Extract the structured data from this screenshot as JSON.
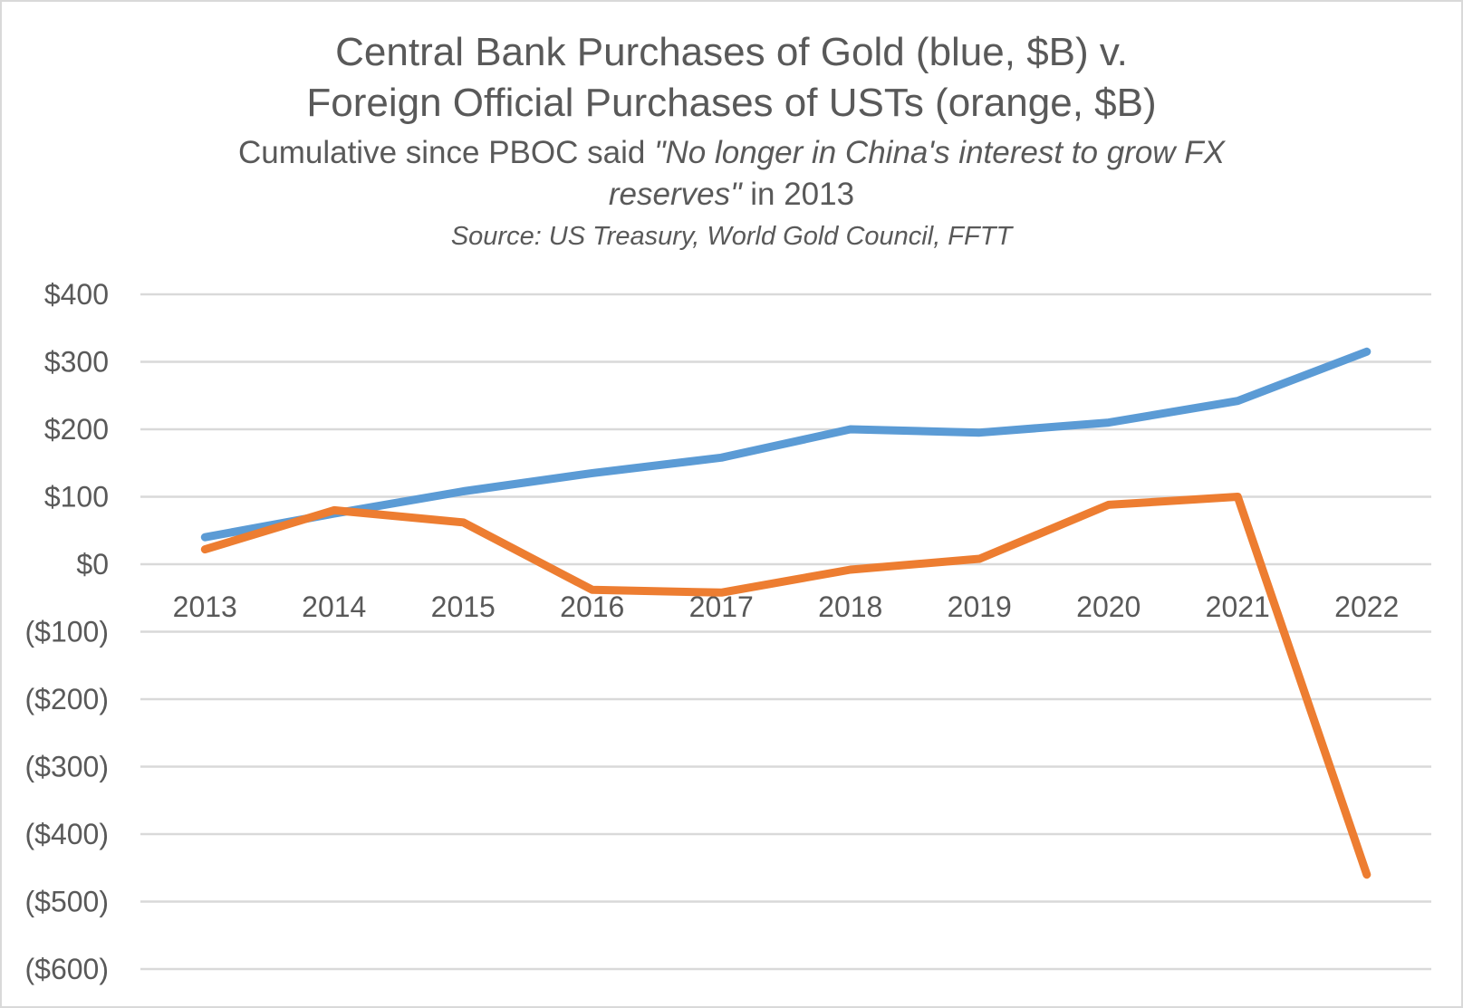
{
  "chart_data": {
    "type": "line",
    "title_line1": "Central Bank Purchases of Gold (blue, $B) v.",
    "title_line2": "Foreign Official Purchases of USTs (orange, $B)",
    "subtitle_part1": "Cumulative since PBOC said ",
    "subtitle_quote_line1": "\"No longer in China's interest to grow FX",
    "subtitle_quote_line2": "reserves\"",
    "subtitle_part2": " in 2013",
    "source": "Source: US Treasury, World Gold Council, FFTT",
    "categories": [
      "2013",
      "2014",
      "2015",
      "2016",
      "2017",
      "2018",
      "2019",
      "2020",
      "2021",
      "2022"
    ],
    "y_ticks": [
      400,
      300,
      200,
      100,
      0,
      -100,
      -200,
      -300,
      -400,
      -500,
      -600
    ],
    "y_tick_labels": [
      "$400",
      "$300",
      "$200",
      "$100",
      "$0",
      "($100)",
      "($200)",
      "($300)",
      "($400)",
      "($500)",
      "($600)"
    ],
    "ylim": [
      -600,
      400
    ],
    "grid": true,
    "series": [
      {
        "color": "#5b9bd5",
        "values": [
          40,
          75,
          108,
          135,
          158,
          200,
          195,
          210,
          242,
          315
        ]
      },
      {
        "color": "#ed7d31",
        "values": [
          22,
          80,
          62,
          -38,
          -42,
          -8,
          8,
          88,
          100,
          -460
        ]
      }
    ]
  }
}
